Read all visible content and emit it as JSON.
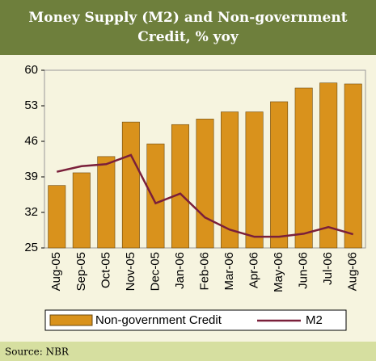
{
  "chart_data": {
    "type": "bar-line",
    "title": "Money Supply (M2) and Non-government Credit, % yoy",
    "categories": [
      "Aug-05",
      "Sep-05",
      "Oct-05",
      "Nov-05",
      "Dec-05",
      "Jan-06",
      "Feb-06",
      "Mar-06",
      "Apr-06",
      "May-06",
      "Jun-06",
      "Jul-06",
      "Aug-06"
    ],
    "series": [
      {
        "name": "Non-government Credit",
        "type": "bar",
        "color": "#d9921c",
        "values": [
          37.3,
          39.8,
          43.0,
          49.8,
          45.5,
          49.3,
          50.4,
          51.8,
          51.8,
          53.8,
          56.5,
          57.5,
          57.3
        ]
      },
      {
        "name": "M2",
        "type": "line",
        "color": "#7a1f3a",
        "values": [
          40.0,
          41.1,
          41.5,
          43.3,
          33.8,
          35.7,
          31.0,
          28.6,
          27.2,
          27.2,
          27.8,
          29.1,
          27.7
        ]
      }
    ],
    "ylim": [
      25,
      60
    ],
    "yticks": [
      25,
      32,
      39,
      46,
      53,
      60
    ],
    "grid": false,
    "source": "Source: NBR"
  }
}
